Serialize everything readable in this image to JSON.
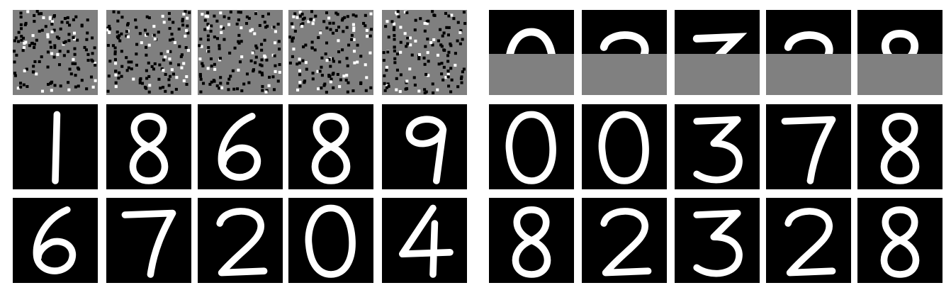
{
  "left_panel": {
    "rows": [
      {
        "kind": "noise",
        "tiles": [
          "noise",
          "noise",
          "noise",
          "noise",
          "noise"
        ]
      },
      {
        "kind": "digits",
        "tiles": [
          "1",
          "8",
          "6",
          "8",
          "9"
        ]
      },
      {
        "kind": "digits",
        "tiles": [
          "6",
          "7",
          "2",
          "0",
          "4"
        ]
      }
    ]
  },
  "right_panel": {
    "rows": [
      {
        "kind": "masked",
        "tiles": [
          "0",
          "2",
          "3",
          "2",
          "8"
        ]
      },
      {
        "kind": "digits",
        "tiles": [
          "0",
          "0",
          "3",
          "7",
          "8"
        ]
      },
      {
        "kind": "digits",
        "tiles": [
          "8",
          "2",
          "3",
          "2",
          "8"
        ]
      }
    ]
  },
  "colors": {
    "tile_background": "#000000",
    "noise_gray": "#7f7f7f",
    "mask_gray": "#808080",
    "stroke": "#ffffff"
  }
}
